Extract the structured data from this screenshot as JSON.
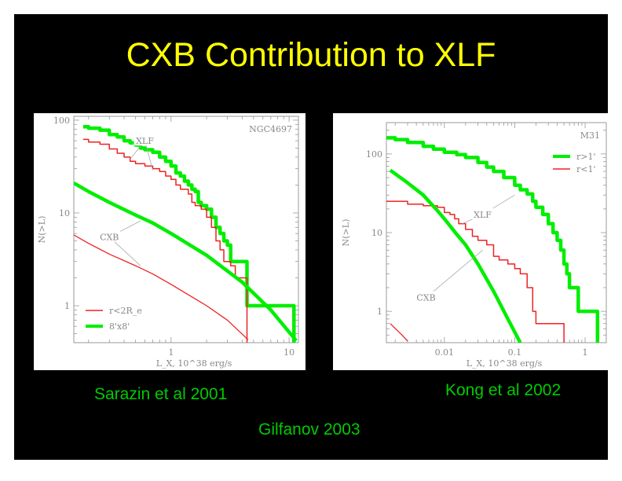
{
  "title": "CXB Contribution to XLF",
  "captions": {
    "left": "Sarazin et al 2001",
    "right": "Kong et al 2002",
    "center": "Gilfanov 2003"
  },
  "colors": {
    "background": "#000000",
    "title": "#ffff00",
    "caption": "#00cc00",
    "green": "#00ee00",
    "red": "#ee2222",
    "axis": "#888888"
  },
  "chart_data": [
    {
      "type": "line",
      "corner_label": "NGC4697",
      "xlabel": "L_X, 10^38 erg/s",
      "ylabel": "N(>L)",
      "xscale": "log",
      "yscale": "log",
      "xlim": [
        0.15,
        12
      ],
      "ylim": [
        0.4,
        110
      ],
      "xticks": [
        {
          "v": 1,
          "label": "1"
        },
        {
          "v": 10,
          "label": "10"
        }
      ],
      "yticks": [
        {
          "v": 1,
          "label": "1"
        },
        {
          "v": 10,
          "label": "10"
        },
        {
          "v": 100,
          "label": "100"
        }
      ],
      "legend": {
        "placement": "bottom-left",
        "entries": [
          {
            "label": "r<2R_e",
            "color": "#ee2222"
          },
          {
            "label": "8'x8'",
            "color": "#00ee00"
          }
        ]
      },
      "annotations": [
        {
          "text": "XLF",
          "x": 0.6,
          "y": 60,
          "arrows": [
            [
              0.45,
              38
            ],
            [
              0.7,
              29
            ]
          ]
        },
        {
          "text": "CXB",
          "x": 0.3,
          "y": 5.5,
          "arrows": [
            [
              0.55,
              8.2
            ],
            [
              0.55,
              2.7
            ]
          ]
        }
      ],
      "series": [
        {
          "name": "8'x8'",
          "color": "#00ee00",
          "width": 4.5,
          "step": true,
          "points": [
            [
              0.18,
              85
            ],
            [
              0.2,
              82
            ],
            [
              0.25,
              78
            ],
            [
              0.3,
              70
            ],
            [
              0.35,
              66
            ],
            [
              0.4,
              60
            ],
            [
              0.45,
              57
            ],
            [
              0.5,
              54
            ],
            [
              0.55,
              50
            ],
            [
              0.6,
              48
            ],
            [
              0.7,
              45
            ],
            [
              0.8,
              40
            ],
            [
              0.9,
              36
            ],
            [
              1.0,
              32
            ],
            [
              1.1,
              27
            ],
            [
              1.2,
              25
            ],
            [
              1.3,
              22
            ],
            [
              1.4,
              20
            ],
            [
              1.5,
              18
            ],
            [
              1.6,
              17
            ],
            [
              1.7,
              13
            ],
            [
              1.8,
              12
            ],
            [
              2.0,
              11
            ],
            [
              2.2,
              9
            ],
            [
              2.4,
              7
            ],
            [
              2.6,
              6
            ],
            [
              2.8,
              5
            ],
            [
              3.0,
              4.5
            ],
            [
              3.2,
              3
            ],
            [
              3.5,
              3
            ],
            [
              4.4,
              3
            ],
            [
              4.4,
              1
            ],
            [
              11,
              1
            ],
            [
              11,
              0.4
            ]
          ]
        },
        {
          "name": "r<2R_e",
          "color": "#ee2222",
          "width": 1.5,
          "step": true,
          "points": [
            [
              0.18,
              62
            ],
            [
              0.2,
              58
            ],
            [
              0.25,
              55
            ],
            [
              0.3,
              49
            ],
            [
              0.35,
              44
            ],
            [
              0.4,
              40
            ],
            [
              0.45,
              36
            ],
            [
              0.5,
              34
            ],
            [
              0.6,
              32
            ],
            [
              0.7,
              30
            ],
            [
              0.8,
              28
            ],
            [
              0.9,
              25
            ],
            [
              1.0,
              23
            ],
            [
              1.1,
              20
            ],
            [
              1.2,
              18
            ],
            [
              1.4,
              16
            ],
            [
              1.5,
              13
            ],
            [
              1.6,
              12
            ],
            [
              1.8,
              11
            ],
            [
              2.0,
              9
            ],
            [
              2.2,
              7
            ],
            [
              2.4,
              5
            ],
            [
              2.6,
              4
            ],
            [
              2.8,
              3
            ],
            [
              3.2,
              2.7
            ],
            [
              3.5,
              2
            ],
            [
              4.4,
              2
            ],
            [
              4.4,
              0.4
            ]
          ]
        },
        {
          "name": "CXB 8'x8'",
          "color": "#00ee00",
          "width": 4.5,
          "step": false,
          "points": [
            [
              0.15,
              21
            ],
            [
              0.2,
              17
            ],
            [
              0.3,
              13
            ],
            [
              0.5,
              9.5
            ],
            [
              0.7,
              7.8
            ],
            [
              1,
              6
            ],
            [
              2,
              3.5
            ],
            [
              4,
              1.8
            ],
            [
              7,
              0.9
            ],
            [
              11.5,
              0.42
            ]
          ]
        },
        {
          "name": "CXB r<2R_e",
          "color": "#ee2222",
          "width": 1.3,
          "step": false,
          "points": [
            [
              0.15,
              5.8
            ],
            [
              0.2,
              4.7
            ],
            [
              0.3,
              3.6
            ],
            [
              0.5,
              2.7
            ],
            [
              0.7,
              2.2
            ],
            [
              1,
              1.7
            ],
            [
              2,
              1.0
            ],
            [
              3,
              0.7
            ],
            [
              4.5,
              0.43
            ]
          ]
        }
      ]
    },
    {
      "type": "line",
      "corner_label": "M31",
      "xlabel": "L_X, 10^38 erg/s",
      "ylabel": "N(>L)",
      "xscale": "log",
      "yscale": "log",
      "xlim": [
        0.0015,
        2
      ],
      "ylim": [
        0.4,
        250
      ],
      "xticks": [
        {
          "v": 0.01,
          "label": "0.01"
        },
        {
          "v": 0.1,
          "label": "0.1"
        },
        {
          "v": 1,
          "label": "1"
        }
      ],
      "yticks": [
        {
          "v": 1,
          "label": "1"
        },
        {
          "v": 10,
          "label": "10"
        },
        {
          "v": 100,
          "label": "100"
        }
      ],
      "legend": {
        "placement": "top-right",
        "entries": [
          {
            "label": "r>1'",
            "color": "#00ee00"
          },
          {
            "label": "r<1'",
            "color": "#ee2222"
          }
        ]
      },
      "annotations": [
        {
          "text": "XLF",
          "x": 0.035,
          "y": 17,
          "arrows": [
            [
              0.1,
              30
            ],
            [
              0.018,
              13
            ]
          ]
        },
        {
          "text": "CXB",
          "x": 0.0055,
          "y": 1.5,
          "arrows": [
            [
              0.035,
              6
            ]
          ]
        }
      ],
      "series": [
        {
          "name": "r>1'",
          "color": "#00ee00",
          "width": 4.5,
          "step": true,
          "points": [
            [
              0.0015,
              160
            ],
            [
              0.002,
              152
            ],
            [
              0.003,
              140
            ],
            [
              0.005,
              125
            ],
            [
              0.007,
              115
            ],
            [
              0.01,
              105
            ],
            [
              0.015,
              98
            ],
            [
              0.02,
              90
            ],
            [
              0.03,
              78
            ],
            [
              0.04,
              68
            ],
            [
              0.05,
              60
            ],
            [
              0.07,
              50
            ],
            [
              0.1,
              40
            ],
            [
              0.12,
              35
            ],
            [
              0.15,
              31
            ],
            [
              0.18,
              25
            ],
            [
              0.2,
              21
            ],
            [
              0.25,
              17
            ],
            [
              0.3,
              13
            ],
            [
              0.35,
              10
            ],
            [
              0.4,
              8
            ],
            [
              0.45,
              6
            ],
            [
              0.5,
              4
            ],
            [
              0.55,
              3
            ],
            [
              0.6,
              2
            ],
            [
              0.8,
              1
            ],
            [
              1.5,
              1
            ],
            [
              1.5,
              0.4
            ]
          ]
        },
        {
          "name": "r<1'",
          "color": "#ee2222",
          "width": 1.5,
          "step": true,
          "points": [
            [
              0.0015,
              25
            ],
            [
              0.003,
              23
            ],
            [
              0.005,
              22
            ],
            [
              0.008,
              21
            ],
            [
              0.01,
              18
            ],
            [
              0.012,
              17
            ],
            [
              0.014,
              15
            ],
            [
              0.016,
              13
            ],
            [
              0.02,
              11
            ],
            [
              0.025,
              9
            ],
            [
              0.03,
              8
            ],
            [
              0.04,
              7
            ],
            [
              0.05,
              5
            ],
            [
              0.06,
              4.5
            ],
            [
              0.08,
              4
            ],
            [
              0.1,
              3.5
            ],
            [
              0.12,
              3
            ],
            [
              0.15,
              2
            ],
            [
              0.18,
              1
            ],
            [
              0.2,
              0.7
            ],
            [
              0.5,
              0.7
            ],
            [
              0.5,
              0.4
            ]
          ]
        },
        {
          "name": "CXB r>1'",
          "color": "#00ee00",
          "width": 4.5,
          "step": false,
          "points": [
            [
              0.0017,
              62
            ],
            [
              0.003,
              43
            ],
            [
              0.005,
              30
            ],
            [
              0.008,
              19
            ],
            [
              0.01,
              15
            ],
            [
              0.015,
              9.5
            ],
            [
              0.02,
              7
            ],
            [
              0.03,
              4
            ],
            [
              0.05,
              1.8
            ],
            [
              0.08,
              0.8
            ],
            [
              0.12,
              0.4
            ]
          ]
        },
        {
          "name": "CXB r<1'",
          "color": "#ee2222",
          "width": 1.3,
          "step": false,
          "points": [
            [
              0.0017,
              0.7
            ],
            [
              0.0025,
              0.5
            ],
            [
              0.003,
              0.42
            ]
          ]
        }
      ]
    }
  ]
}
